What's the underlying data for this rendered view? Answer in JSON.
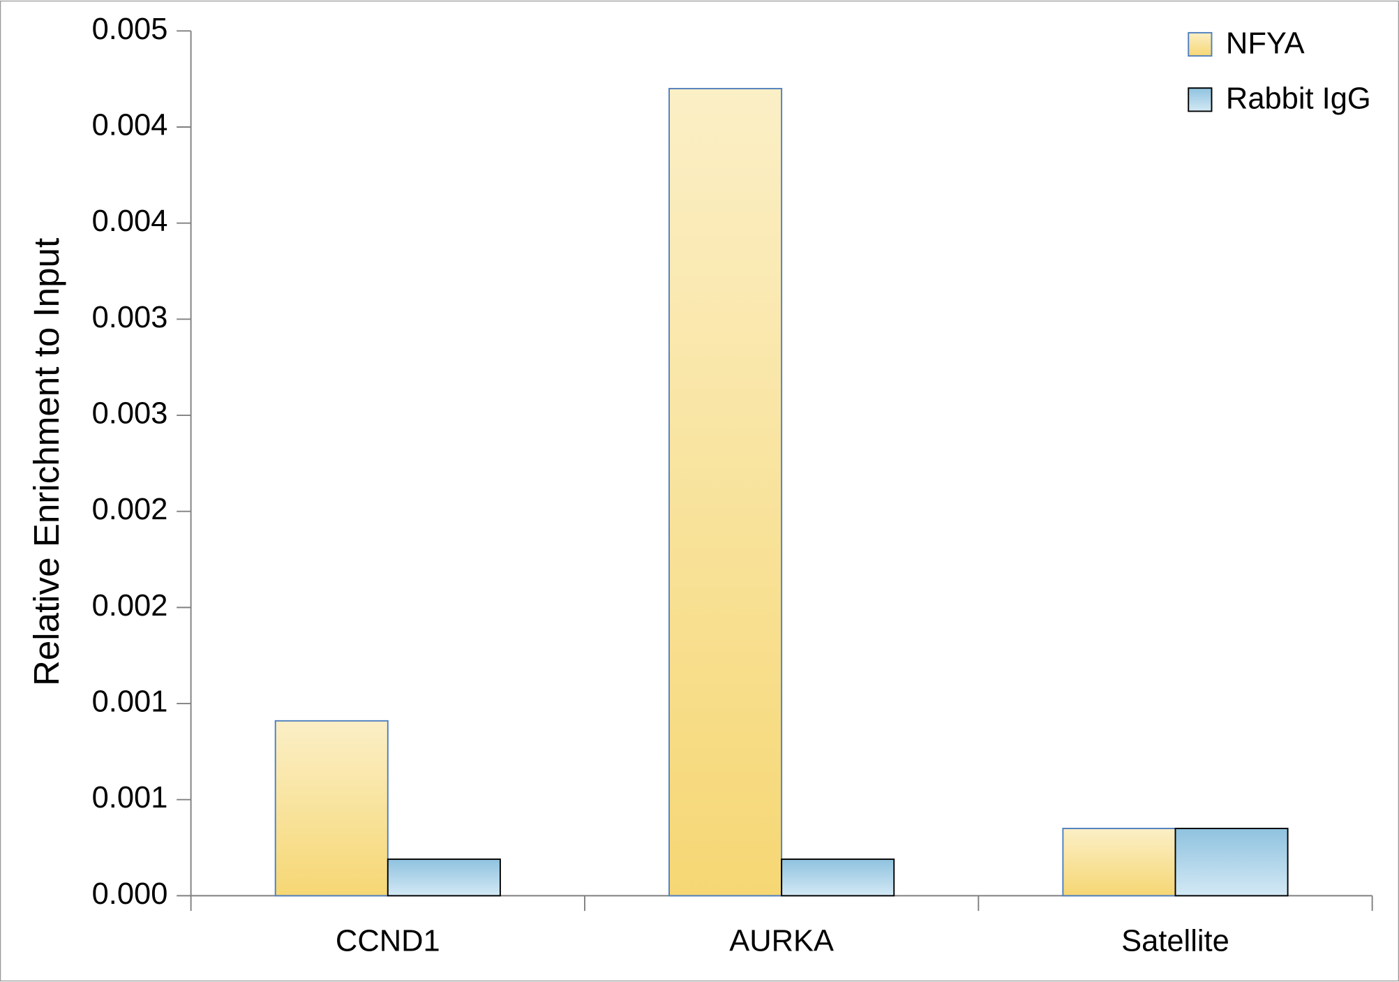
{
  "chart_data": {
    "type": "bar",
    "y_label": "Relative Enrichment to Input",
    "categories": [
      "CCND1",
      "AURKA",
      "Satellite"
    ],
    "series": [
      {
        "name": "NFYA",
        "color": "#f6d774",
        "values": [
          0.00091,
          0.0042,
          0.00035
        ]
      },
      {
        "name": "Rabbit IgG",
        "color": "#8fc2df",
        "values": [
          0.00019,
          0.00019,
          0.00035
        ]
      }
    ],
    "ylim": [
      0,
      0.0045
    ],
    "yticks": [
      {
        "value": 0,
        "label": "0.000"
      },
      {
        "value": 0.0005,
        "label": "0.001"
      },
      0.001,
      {
        "value": 0.0015,
        "label": "0.002"
      },
      0.002,
      {
        "value": 0.0025,
        "label": "0.003"
      },
      0.003,
      {
        "value": 0.0035,
        "label": "0.004"
      },
      0.004,
      {
        "value": 0.0045,
        "label": "0.005"
      }
    ],
    "grid": false,
    "legend": "upper right"
  }
}
